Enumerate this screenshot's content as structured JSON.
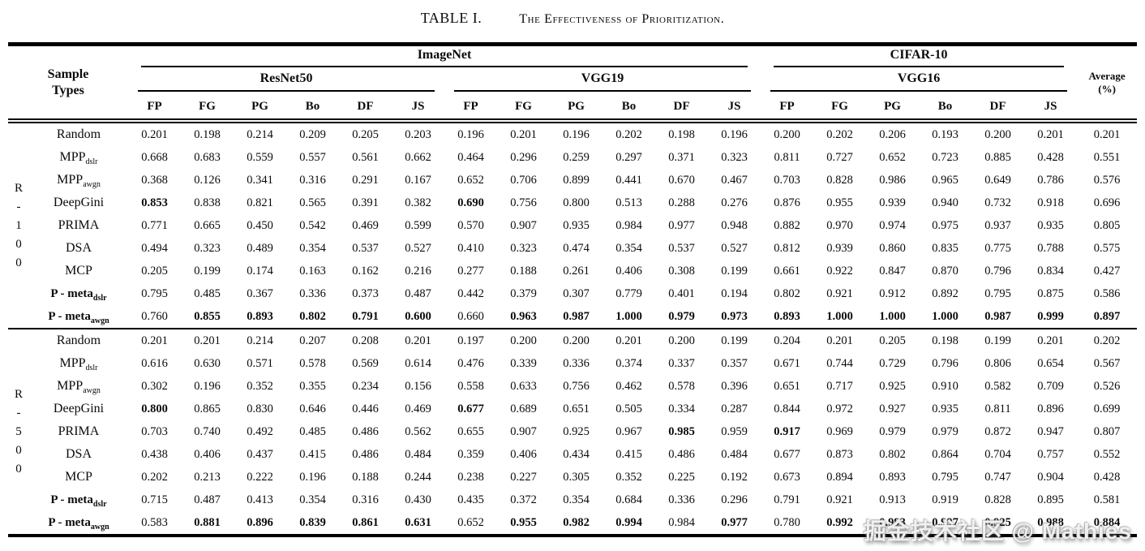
{
  "title": {
    "label": "TABLE I.",
    "text": "The Effectiveness of Prioritization."
  },
  "header": {
    "sample_types_line1": "Sample",
    "sample_types_line2": "Types",
    "datasets": [
      {
        "name": "ImageNet",
        "models": [
          {
            "name": "ResNet50"
          },
          {
            "name": "VGG19"
          }
        ]
      },
      {
        "name": "CIFAR-10",
        "models": [
          {
            "name": "VGG16"
          }
        ]
      }
    ],
    "metrics": [
      "FP",
      "FG",
      "PG",
      "Bo",
      "DF",
      "JS"
    ],
    "average_line1": "Average",
    "average_line2": "(%)"
  },
  "groups": [
    {
      "name": "R-100",
      "label_chars": [
        "R",
        "-",
        "1",
        "0",
        "0"
      ],
      "rows": [
        {
          "label": "Random",
          "sub": "",
          "bold_label": false,
          "bold": [],
          "values": [
            "0.201",
            "0.198",
            "0.214",
            "0.209",
            "0.205",
            "0.203",
            "0.196",
            "0.201",
            "0.196",
            "0.202",
            "0.198",
            "0.196",
            "0.200",
            "0.202",
            "0.206",
            "0.193",
            "0.200",
            "0.201",
            "0.201"
          ]
        },
        {
          "label": "MPP",
          "sub": "dslr",
          "bold_label": false,
          "bold": [],
          "values": [
            "0.668",
            "0.683",
            "0.559",
            "0.557",
            "0.561",
            "0.662",
            "0.464",
            "0.296",
            "0.259",
            "0.297",
            "0.371",
            "0.323",
            "0.811",
            "0.727",
            "0.652",
            "0.723",
            "0.885",
            "0.428",
            "0.551"
          ]
        },
        {
          "label": "MPP",
          "sub": "awgn",
          "bold_label": false,
          "bold": [],
          "values": [
            "0.368",
            "0.126",
            "0.341",
            "0.316",
            "0.291",
            "0.167",
            "0.652",
            "0.706",
            "0.899",
            "0.441",
            "0.670",
            "0.467",
            "0.703",
            "0.828",
            "0.986",
            "0.965",
            "0.649",
            "0.786",
            "0.576"
          ]
        },
        {
          "label": "DeepGini",
          "sub": "",
          "bold_label": false,
          "bold": [
            0,
            6
          ],
          "values": [
            "0.853",
            "0.838",
            "0.821",
            "0.565",
            "0.391",
            "0.382",
            "0.690",
            "0.756",
            "0.800",
            "0.513",
            "0.288",
            "0.276",
            "0.876",
            "0.955",
            "0.939",
            "0.940",
            "0.732",
            "0.918",
            "0.696"
          ]
        },
        {
          "label": "PRIMA",
          "sub": "",
          "bold_label": false,
          "bold": [],
          "values": [
            "0.771",
            "0.665",
            "0.450",
            "0.542",
            "0.469",
            "0.599",
            "0.570",
            "0.907",
            "0.935",
            "0.984",
            "0.977",
            "0.948",
            "0.882",
            "0.970",
            "0.974",
            "0.975",
            "0.937",
            "0.935",
            "0.805"
          ]
        },
        {
          "label": "DSA",
          "sub": "",
          "bold_label": false,
          "bold": [],
          "values": [
            "0.494",
            "0.323",
            "0.489",
            "0.354",
            "0.537",
            "0.527",
            "0.410",
            "0.323",
            "0.474",
            "0.354",
            "0.537",
            "0.527",
            "0.812",
            "0.939",
            "0.860",
            "0.835",
            "0.775",
            "0.788",
            "0.575"
          ]
        },
        {
          "label": "MCP",
          "sub": "",
          "bold_label": false,
          "bold": [],
          "values": [
            "0.205",
            "0.199",
            "0.174",
            "0.163",
            "0.162",
            "0.216",
            "0.277",
            "0.188",
            "0.261",
            "0.406",
            "0.308",
            "0.199",
            "0.661",
            "0.922",
            "0.847",
            "0.870",
            "0.796",
            "0.834",
            "0.427"
          ]
        },
        {
          "label": "P - meta",
          "sub": "dslr",
          "bold_label": true,
          "bold": [],
          "values": [
            "0.795",
            "0.485",
            "0.367",
            "0.336",
            "0.373",
            "0.487",
            "0.442",
            "0.379",
            "0.307",
            "0.779",
            "0.401",
            "0.194",
            "0.802",
            "0.921",
            "0.912",
            "0.892",
            "0.795",
            "0.875",
            "0.586"
          ]
        },
        {
          "label": "P - meta",
          "sub": "awgn",
          "bold_label": true,
          "bold": [
            1,
            2,
            3,
            4,
            5,
            7,
            8,
            9,
            10,
            11,
            12,
            13,
            14,
            15,
            16,
            17,
            18
          ],
          "values": [
            "0.760",
            "0.855",
            "0.893",
            "0.802",
            "0.791",
            "0.600",
            "0.660",
            "0.963",
            "0.987",
            "1.000",
            "0.979",
            "0.973",
            "0.893",
            "1.000",
            "1.000",
            "1.000",
            "0.987",
            "0.999",
            "0.897"
          ]
        }
      ]
    },
    {
      "name": "R-500",
      "label_chars": [
        "R",
        "-",
        "5",
        "0",
        "0"
      ],
      "rows": [
        {
          "label": "Random",
          "sub": "",
          "bold_label": false,
          "bold": [],
          "values": [
            "0.201",
            "0.201",
            "0.214",
            "0.207",
            "0.208",
            "0.201",
            "0.197",
            "0.200",
            "0.200",
            "0.201",
            "0.200",
            "0.199",
            "0.204",
            "0.201",
            "0.205",
            "0.198",
            "0.199",
            "0.201",
            "0.202"
          ]
        },
        {
          "label": "MPP",
          "sub": "dslr",
          "bold_label": false,
          "bold": [],
          "values": [
            "0.616",
            "0.630",
            "0.571",
            "0.578",
            "0.569",
            "0.614",
            "0.476",
            "0.339",
            "0.336",
            "0.374",
            "0.337",
            "0.357",
            "0.671",
            "0.744",
            "0.729",
            "0.796",
            "0.806",
            "0.654",
            "0.567"
          ]
        },
        {
          "label": "MPP",
          "sub": "awgn",
          "bold_label": false,
          "bold": [],
          "values": [
            "0.302",
            "0.196",
            "0.352",
            "0.355",
            "0.234",
            "0.156",
            "0.558",
            "0.633",
            "0.756",
            "0.462",
            "0.578",
            "0.396",
            "0.651",
            "0.717",
            "0.925",
            "0.910",
            "0.582",
            "0.709",
            "0.526"
          ]
        },
        {
          "label": "DeepGini",
          "sub": "",
          "bold_label": false,
          "bold": [
            0,
            6
          ],
          "values": [
            "0.800",
            "0.865",
            "0.830",
            "0.646",
            "0.446",
            "0.469",
            "0.677",
            "0.689",
            "0.651",
            "0.505",
            "0.334",
            "0.287",
            "0.844",
            "0.972",
            "0.927",
            "0.935",
            "0.811",
            "0.896",
            "0.699"
          ]
        },
        {
          "label": "PRIMA",
          "sub": "",
          "bold_label": false,
          "bold": [
            10,
            12
          ],
          "values": [
            "0.703",
            "0.740",
            "0.492",
            "0.485",
            "0.486",
            "0.562",
            "0.655",
            "0.907",
            "0.925",
            "0.967",
            "0.985",
            "0.959",
            "0.917",
            "0.969",
            "0.979",
            "0.979",
            "0.872",
            "0.947",
            "0.807"
          ]
        },
        {
          "label": "DSA",
          "sub": "",
          "bold_label": false,
          "bold": [],
          "values": [
            "0.438",
            "0.406",
            "0.437",
            "0.415",
            "0.486",
            "0.484",
            "0.359",
            "0.406",
            "0.434",
            "0.415",
            "0.486",
            "0.484",
            "0.677",
            "0.873",
            "0.802",
            "0.864",
            "0.704",
            "0.757",
            "0.552"
          ]
        },
        {
          "label": "MCP",
          "sub": "",
          "bold_label": false,
          "bold": [],
          "values": [
            "0.202",
            "0.213",
            "0.222",
            "0.196",
            "0.188",
            "0.244",
            "0.238",
            "0.227",
            "0.305",
            "0.352",
            "0.225",
            "0.192",
            "0.673",
            "0.894",
            "0.893",
            "0.795",
            "0.747",
            "0.904",
            "0.428"
          ]
        },
        {
          "label": "P - meta",
          "sub": "dslr",
          "bold_label": true,
          "bold": [],
          "values": [
            "0.715",
            "0.487",
            "0.413",
            "0.354",
            "0.316",
            "0.430",
            "0.435",
            "0.372",
            "0.354",
            "0.684",
            "0.336",
            "0.296",
            "0.791",
            "0.921",
            "0.913",
            "0.919",
            "0.828",
            "0.895",
            "0.581"
          ]
        },
        {
          "label": "P - meta",
          "sub": "awgn",
          "bold_label": true,
          "bold": [
            1,
            2,
            3,
            4,
            5,
            7,
            8,
            9,
            11,
            13,
            14,
            15,
            16,
            17,
            18
          ],
          "values": [
            "0.583",
            "0.881",
            "0.896",
            "0.839",
            "0.861",
            "0.631",
            "0.652",
            "0.955",
            "0.982",
            "0.994",
            "0.984",
            "0.977",
            "0.780",
            "0.992",
            "0.993",
            "0.997",
            "0.925",
            "0.988",
            "0.884"
          ]
        }
      ]
    }
  ],
  "watermark": "掘金技术社区 @ Mathies"
}
